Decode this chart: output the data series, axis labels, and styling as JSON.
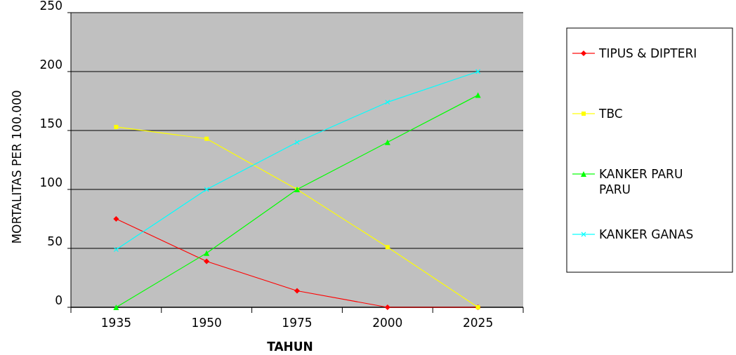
{
  "chart_data": {
    "type": "line",
    "xlabel": "TAHUN",
    "ylabel": "MORTALITAS PER 100.000",
    "categories": [
      "1935",
      "1950",
      "1975",
      "2000",
      "2025"
    ],
    "series": [
      {
        "name": "TIPUS & DIPTERI",
        "color": "#ff0000",
        "marker": "diamond",
        "values": [
          75,
          39,
          14,
          0,
          0
        ]
      },
      {
        "name": "TBC",
        "color": "#ffff00",
        "marker": "square",
        "values": [
          153,
          143,
          100,
          51,
          0
        ]
      },
      {
        "name": "KANKER PARU PARU",
        "color": "#00ff00",
        "marker": "triangle",
        "values": [
          0,
          46,
          100,
          140,
          180
        ]
      },
      {
        "name": "KANKER GANAS",
        "color": "#00ffff",
        "marker": "cross",
        "values": [
          49,
          100,
          140,
          174,
          200
        ]
      }
    ],
    "ylim": [
      0,
      250
    ],
    "yticks": [
      0,
      50,
      100,
      150,
      200,
      250
    ],
    "grid": "y",
    "legend": "right",
    "line_style": "solid"
  }
}
